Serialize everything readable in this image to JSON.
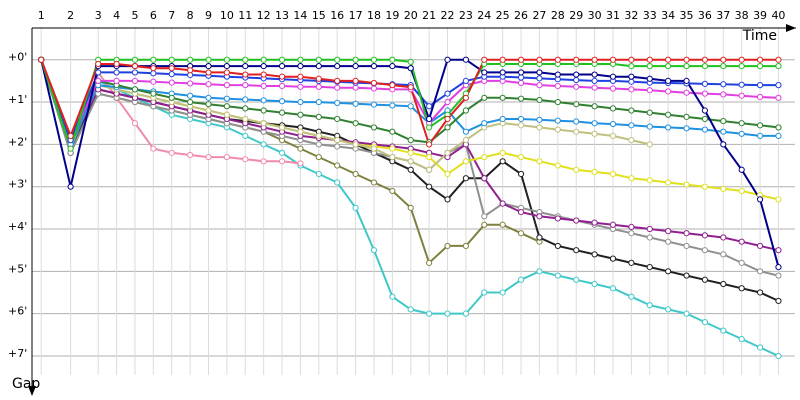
{
  "chart_data": {
    "type": "line",
    "x_label": "Time",
    "y_label": "Gap",
    "xlim": [
      0,
      41.5
    ],
    "xticks": [
      {
        "value": 0.5,
        "label": "1"
      },
      {
        "value": 2.1,
        "label": "2"
      },
      {
        "value": 3.6,
        "label": "3"
      },
      {
        "value": 4.6,
        "label": "4"
      },
      {
        "value": 5.6,
        "label": "5"
      },
      {
        "value": 6.6,
        "label": "6"
      },
      {
        "value": 7.6,
        "label": "7"
      },
      {
        "value": 8.6,
        "label": "8"
      },
      {
        "value": 9.6,
        "label": "9"
      },
      {
        "value": 10.6,
        "label": "10"
      },
      {
        "value": 11.6,
        "label": "11"
      },
      {
        "value": 12.6,
        "label": "12"
      },
      {
        "value": 13.6,
        "label": "13"
      },
      {
        "value": 14.6,
        "label": "14"
      },
      {
        "value": 15.6,
        "label": "15"
      },
      {
        "value": 16.6,
        "label": "16"
      },
      {
        "value": 17.6,
        "label": "17"
      },
      {
        "value": 18.6,
        "label": "18"
      },
      {
        "value": 19.6,
        "label": "19"
      },
      {
        "value": 20.6,
        "label": "20"
      },
      {
        "value": 21.6,
        "label": "21"
      },
      {
        "value": 22.6,
        "label": "22"
      },
      {
        "value": 23.6,
        "label": "23"
      },
      {
        "value": 24.6,
        "label": "24"
      },
      {
        "value": 25.6,
        "label": "25"
      },
      {
        "value": 26.6,
        "label": "26"
      },
      {
        "value": 27.6,
        "label": "27"
      },
      {
        "value": 28.6,
        "label": "28"
      },
      {
        "value": 29.6,
        "label": "29"
      },
      {
        "value": 30.6,
        "label": "30"
      },
      {
        "value": 31.6,
        "label": "31"
      },
      {
        "value": 32.6,
        "label": "32"
      },
      {
        "value": 33.6,
        "label": "33"
      },
      {
        "value": 34.6,
        "label": "34"
      },
      {
        "value": 35.6,
        "label": "35"
      },
      {
        "value": 36.6,
        "label": "36"
      },
      {
        "value": 37.6,
        "label": "37"
      },
      {
        "value": 38.6,
        "label": "38"
      },
      {
        "value": 39.6,
        "label": "39"
      },
      {
        "value": 40.6,
        "label": "40"
      }
    ],
    "ylim": [
      -0.75,
      7.45
    ],
    "yticks": [
      {
        "value": 0,
        "label": "+0'"
      },
      {
        "value": 1,
        "label": "+1'"
      },
      {
        "value": 2,
        "label": "+2'"
      },
      {
        "value": 3,
        "label": "+3'"
      },
      {
        "value": 4,
        "label": "+4'"
      },
      {
        "value": 5,
        "label": "+5'"
      },
      {
        "value": 6,
        "label": "+6'"
      },
      {
        "value": 7,
        "label": "+7'"
      }
    ],
    "y_inverted": true,
    "grid": true,
    "series": [
      {
        "color": "#40c8c8",
        "values": [
          0,
          2.2,
          0.5,
          0.7,
          0.9,
          1.1,
          1.3,
          1.4,
          1.5,
          1.6,
          1.8,
          2.0,
          2.2,
          2.5,
          2.7,
          2.9,
          3.5,
          4.5,
          5.6,
          5.9,
          6.0,
          6.0,
          6.0,
          5.5,
          5.5,
          5.2,
          5.0,
          5.1,
          5.2,
          5.3,
          5.4,
          5.6,
          5.8,
          5.9,
          6.0,
          6.2,
          6.4,
          6.6,
          6.8,
          7.0
        ]
      },
      {
        "color": "#f08caa",
        "values": [
          0,
          2.0,
          0.3,
          0.9,
          1.5,
          2.1,
          2.2,
          2.25,
          2.3,
          2.3,
          2.35,
          2.4,
          2.4,
          2.45,
          null,
          null,
          null,
          null,
          null,
          null,
          null,
          null,
          null,
          null,
          null,
          null,
          null,
          null,
          null,
          null,
          null,
          null,
          null,
          null,
          null,
          null,
          null,
          null,
          null,
          null
        ]
      },
      {
        "color": "#808040",
        "values": [
          0,
          2.2,
          0.8,
          0.9,
          1.0,
          1.1,
          1.2,
          1.3,
          1.4,
          1.5,
          1.6,
          1.7,
          1.9,
          2.1,
          2.3,
          2.5,
          2.7,
          2.9,
          3.1,
          3.5,
          4.8,
          4.4,
          4.4,
          3.9,
          3.9,
          4.1,
          4.3,
          null,
          null,
          null,
          null,
          null,
          null,
          null,
          null,
          null,
          null,
          null,
          null,
          null
        ]
      },
      {
        "color": "#202020",
        "values": [
          0,
          2.2,
          0.7,
          0.8,
          0.9,
          1.0,
          1.1,
          1.2,
          1.3,
          1.4,
          1.45,
          1.5,
          1.55,
          1.6,
          1.7,
          1.8,
          2.0,
          2.2,
          2.4,
          2.6,
          3.0,
          3.3,
          2.8,
          2.8,
          2.4,
          2.7,
          4.2,
          4.4,
          4.5,
          4.6,
          4.7,
          4.8,
          4.9,
          5.0,
          5.1,
          5.2,
          5.3,
          5.4,
          5.5,
          5.7
        ]
      },
      {
        "color": "#909090",
        "values": [
          0,
          2.2,
          0.8,
          0.9,
          1.0,
          1.1,
          1.2,
          1.3,
          1.4,
          1.5,
          1.6,
          1.7,
          1.8,
          1.9,
          2.0,
          2.05,
          2.1,
          2.2,
          2.3,
          2.4,
          2.6,
          2.2,
          2.0,
          3.7,
          3.4,
          3.5,
          3.6,
          3.7,
          3.8,
          3.9,
          4.0,
          4.1,
          4.2,
          4.3,
          4.4,
          4.5,
          4.6,
          4.8,
          5.0,
          5.1
        ]
      },
      {
        "color": "#902090",
        "values": [
          0,
          2.0,
          0.7,
          0.8,
          0.9,
          1.0,
          1.1,
          1.2,
          1.3,
          1.4,
          1.5,
          1.6,
          1.7,
          1.8,
          1.85,
          1.9,
          1.95,
          2.0,
          2.05,
          2.1,
          2.2,
          2.3,
          2.0,
          2.8,
          3.4,
          3.6,
          3.7,
          3.75,
          3.8,
          3.85,
          3.9,
          3.95,
          4.0,
          4.05,
          4.1,
          4.15,
          4.2,
          4.3,
          4.4,
          4.5
        ]
      },
      {
        "color": "#e0e020",
        "values": [
          0,
          2.0,
          0.6,
          0.7,
          0.8,
          0.9,
          1.0,
          1.1,
          1.2,
          1.3,
          1.4,
          1.5,
          1.6,
          1.7,
          1.8,
          1.9,
          2.0,
          2.05,
          2.1,
          2.2,
          2.3,
          2.7,
          2.4,
          2.3,
          2.2,
          2.3,
          2.4,
          2.5,
          2.6,
          2.65,
          2.7,
          2.8,
          2.85,
          2.9,
          2.95,
          3.0,
          3.05,
          3.1,
          3.2,
          3.3
        ]
      },
      {
        "color": "#c0c080",
        "values": [
          0,
          2.0,
          0.6,
          0.7,
          0.8,
          0.9,
          1.0,
          1.1,
          1.2,
          1.3,
          1.4,
          1.5,
          1.6,
          1.7,
          1.8,
          1.9,
          2.0,
          2.1,
          2.3,
          2.4,
          2.6,
          2.2,
          1.9,
          1.6,
          1.5,
          1.55,
          1.6,
          1.65,
          1.7,
          1.75,
          1.8,
          1.9,
          2.0,
          null,
          null,
          null,
          null,
          null,
          null,
          null
        ]
      },
      {
        "color": "#2090e0",
        "values": [
          0,
          2.0,
          0.6,
          0.65,
          0.7,
          0.75,
          0.8,
          0.85,
          0.9,
          0.92,
          0.94,
          0.96,
          0.98,
          1.0,
          1.0,
          1.02,
          1.04,
          1.06,
          1.08,
          1.1,
          1.5,
          1.2,
          1.7,
          1.5,
          1.4,
          1.4,
          1.42,
          1.44,
          1.46,
          1.5,
          1.52,
          1.55,
          1.58,
          1.6,
          1.62,
          1.65,
          1.7,
          1.75,
          1.8,
          1.8
        ]
      },
      {
        "color": "#308030",
        "values": [
          0,
          1.9,
          0.5,
          0.6,
          0.7,
          0.8,
          0.9,
          1.0,
          1.05,
          1.1,
          1.15,
          1.2,
          1.25,
          1.3,
          1.35,
          1.4,
          1.5,
          1.6,
          1.7,
          1.9,
          1.95,
          1.6,
          1.2,
          0.9,
          0.9,
          0.92,
          0.95,
          1.0,
          1.05,
          1.1,
          1.15,
          1.2,
          1.25,
          1.3,
          1.35,
          1.4,
          1.45,
          1.5,
          1.55,
          1.6
        ]
      },
      {
        "color": "#e040e0",
        "values": [
          0,
          1.9,
          0.5,
          0.5,
          0.5,
          0.52,
          0.54,
          0.56,
          0.58,
          0.6,
          0.6,
          0.62,
          0.62,
          0.64,
          0.64,
          0.66,
          0.66,
          0.68,
          0.7,
          0.7,
          1.5,
          1.0,
          0.6,
          0.5,
          0.5,
          0.55,
          0.6,
          0.62,
          0.64,
          0.66,
          0.68,
          0.7,
          0.72,
          0.75,
          0.78,
          0.8,
          0.82,
          0.85,
          0.88,
          0.9
        ]
      },
      {
        "color": "#2040e0",
        "values": [
          0,
          1.9,
          0.3,
          0.3,
          0.3,
          0.32,
          0.34,
          0.36,
          0.38,
          0.4,
          0.42,
          0.44,
          0.46,
          0.48,
          0.5,
          0.52,
          0.54,
          0.56,
          0.58,
          0.6,
          1.1,
          0.8,
          0.5,
          0.4,
          0.4,
          0.42,
          0.44,
          0.46,
          0.48,
          0.5,
          0.5,
          0.52,
          0.54,
          0.55,
          0.56,
          0.57,
          0.58,
          0.59,
          0.6,
          0.6
        ]
      },
      {
        "color": "#00008b",
        "values": [
          0,
          3.0,
          0.15,
          0.15,
          0.15,
          0.15,
          0.15,
          0.15,
          0.15,
          0.15,
          0.15,
          0.15,
          0.15,
          0.15,
          0.15,
          0.15,
          0.15,
          0.15,
          0.15,
          0.2,
          1.4,
          0,
          0,
          0.3,
          0.3,
          0.3,
          0.3,
          0.35,
          0.35,
          0.35,
          0.4,
          0.4,
          0.45,
          0.5,
          0.5,
          1.2,
          2.0,
          2.6,
          3.3,
          4.9
        ]
      },
      {
        "color": "#20c020",
        "values": [
          0,
          2.1,
          0,
          0,
          0,
          0,
          0,
          0,
          0,
          0,
          0,
          0,
          0,
          0,
          0,
          0,
          0,
          0,
          0,
          0.05,
          1.6,
          1.3,
          0.8,
          0.1,
          0.1,
          0.1,
          0.1,
          0.1,
          0.1,
          0.1,
          0.1,
          0.15,
          0.15,
          0.15,
          0.15,
          0.15,
          0.15,
          0.15,
          0.15,
          0.15
        ]
      },
      {
        "color": "#e02020",
        "values": [
          0,
          1.8,
          0.1,
          0.1,
          0.15,
          0.2,
          0.2,
          0.25,
          0.3,
          0.3,
          0.35,
          0.35,
          0.4,
          0.4,
          0.45,
          0.5,
          0.5,
          0.55,
          0.6,
          0.65,
          2.0,
          1.4,
          0.9,
          0,
          0,
          0,
          0,
          0,
          0,
          0,
          0,
          0,
          0,
          0,
          0,
          0,
          0,
          0,
          0,
          0
        ]
      }
    ]
  }
}
